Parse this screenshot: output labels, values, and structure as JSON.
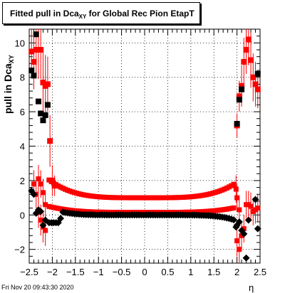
{
  "title": {
    "prefix": "Fitted pull in Dca",
    "subscript": "XY",
    "suffix": " for Global Rec Pion EtapT"
  },
  "footer": {
    "timestamp": "Fri Nov 20 09:43:30 2020"
  },
  "chart_data": {
    "type": "scatter",
    "title": "Fitted pull in Dca_XY for Global Rec Pion EtapT",
    "xlabel": "η",
    "ylabel": "pull in Dca_XY",
    "xlim": [
      -2.5,
      2.5
    ],
    "ylim": [
      -2.8,
      10.8
    ],
    "x_ticks": [
      "−2.5",
      "−2",
      "−1.5",
      "−1",
      "−0.5",
      "0",
      "0.5",
      "1",
      "1.5",
      "2",
      "2.5"
    ],
    "x_tick_values": [
      -2.5,
      -2,
      -1.5,
      -1,
      -0.5,
      0,
      0.5,
      1,
      1.5,
      2,
      2.5
    ],
    "y_ticks": [
      "−2",
      "0",
      "2",
      "4",
      "6",
      "8",
      "10"
    ],
    "y_tick_values": [
      -2,
      0,
      2,
      4,
      6,
      8,
      10
    ],
    "grid": true,
    "colors": {
      "sigma": "#ff0000",
      "mean": "#000000",
      "error": "#ff0000"
    },
    "series": [
      {
        "marker": "square",
        "color": "#ff0000",
        "x": [
          -2.45,
          -2.4,
          -2.35,
          -2.3,
          -2.25,
          -2.2,
          -2.15,
          -2.1,
          -2.05,
          -2.0,
          -1.95,
          2.0,
          2.05,
          2.1,
          2.15,
          2.2,
          2.25,
          2.3,
          2.35,
          2.4,
          2.45
        ],
        "y": [
          9.5,
          8.9,
          9.6,
          9.6,
          9.6,
          7.7,
          7.5,
          7.6,
          4.3,
          2.0,
          1.7,
          5.2,
          6.9,
          7.5,
          8.9,
          9.6,
          10.2,
          9.0,
          8.0,
          7.6,
          7.3
        ],
        "err": [
          1.5,
          1.6,
          1.6,
          1.7,
          1.7,
          1.8,
          1.8,
          1.6,
          1.5,
          0.9,
          0.6,
          0.7,
          0.9,
          1.2,
          1.4,
          1.4,
          1.5,
          1.6,
          1.4,
          1.3,
          1.1
        ]
      },
      {
        "marker": "square",
        "color": "#000000",
        "x": [
          -2.45,
          -2.4,
          -2.35,
          -2.3,
          -2.25,
          -2.2,
          -2.15,
          -2.1,
          2.0,
          2.05,
          2.1,
          2.45
        ],
        "y": [
          8.4,
          8.1,
          10.5,
          6.6,
          5.9,
          5.5,
          5.8,
          6.4,
          5.3,
          6.7,
          7.3,
          8.2
        ],
        "err": [
          0,
          0,
          0,
          0,
          0,
          0,
          0,
          0,
          0,
          0,
          0,
          0
        ]
      },
      {
        "marker": "square",
        "color": "#ff0000",
        "x_start": -2.07,
        "x_end": 1.95,
        "y_center": 1.0,
        "y_rise": 0.9,
        "segment_x": [
          -2.4,
          -2.35,
          -2.3,
          -2.25,
          -2.2,
          -2.15,
          1.98,
          2.0,
          2.05,
          2.1,
          2.15,
          2.2,
          2.25,
          2.3,
          2.35,
          2.4,
          2.45
        ],
        "segment_y": [
          1.8,
          1.2,
          2.1,
          1.8,
          1.3,
          0.6,
          1.5,
          1.0,
          0.3,
          -1.2,
          -0.8,
          0.6,
          0.6,
          0.5,
          0.2,
          0.3,
          0.4
        ],
        "err": 0.8
      },
      {
        "marker": "square",
        "color": "#ff0000",
        "x_start": -2.07,
        "x_end": 1.95,
        "y_center": 0.15,
        "y_rise": 0.3,
        "segment_x": [
          -2.3,
          -2.25,
          -2.2,
          -2.15,
          2.0,
          2.05
        ],
        "segment_y": [
          0.15,
          -0.3,
          -0.7,
          -0.9,
          -1.5,
          -2.0
        ],
        "err": 0.9
      },
      {
        "marker": "diamond",
        "color": "#000000",
        "x_start": -2.07,
        "x_end": 1.95,
        "y_center": 0.0,
        "y_dip": -0.45,
        "y_edge": 1.4,
        "segment_x": [
          -2.45,
          -2.4,
          -2.35,
          -2.3,
          -2.25,
          -2.2,
          -2.15,
          1.98,
          2.0,
          2.05,
          2.1,
          2.15,
          2.2,
          2.25,
          2.4,
          2.45
        ],
        "segment_y": [
          1.4,
          1.2,
          0.1,
          0.3,
          0.2,
          -0.6,
          -0.3,
          -0.7,
          -0.6,
          -0.4,
          -0.9,
          -1.1,
          -2.5,
          -0.3,
          0.9,
          -0.8
        ],
        "err": 0
      }
    ]
  }
}
